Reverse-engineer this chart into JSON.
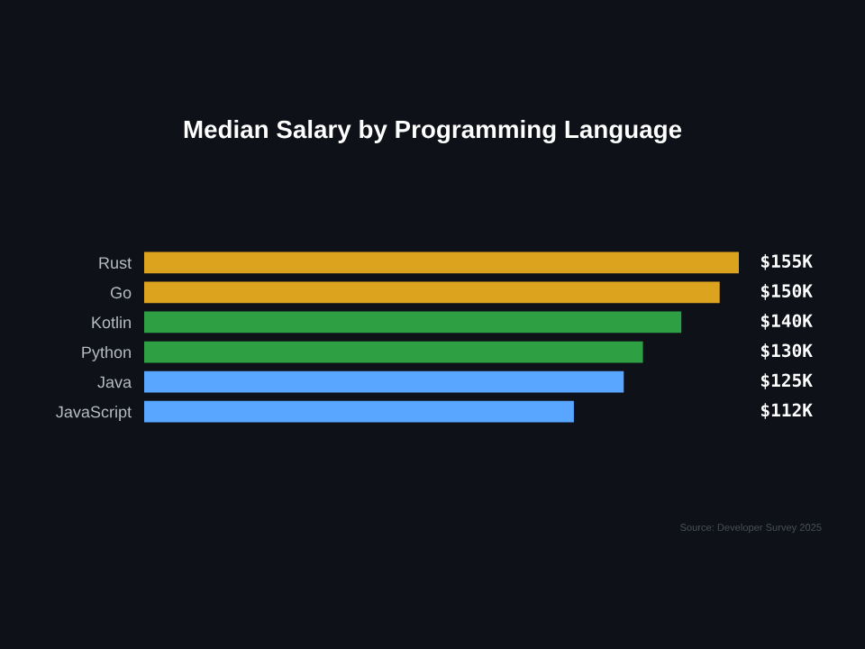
{
  "chart_data": {
    "type": "bar",
    "orientation": "horizontal",
    "relative": false,
    "title": "Median Salary by Programming Language",
    "categories": [
      "Rust",
      "Go",
      "Kotlin",
      "Python",
      "Java",
      "JavaScript"
    ],
    "values": [
      155,
      150,
      140,
      130,
      125,
      112
    ],
    "colors": [
      "#dba31e",
      "#dba31e",
      "#2ea043",
      "#2ea043",
      "#58a6ff",
      "#58a6ff"
    ],
    "value_labels": [
      "$155K",
      "$150K",
      "$140K",
      "$130K",
      "$125K",
      "$112K"
    ],
    "annotations": [
      "Source: Developer Survey 2025"
    ],
    "grid": false,
    "legend": false
  }
}
